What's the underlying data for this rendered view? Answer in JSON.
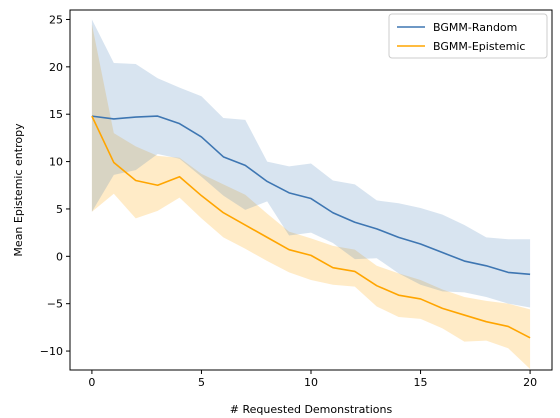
{
  "chart_data": {
    "type": "line",
    "xlabel": "# Requested Demonstrations",
    "ylabel": "Mean Epistemic entropy",
    "xlim": [
      -1,
      21
    ],
    "ylim": [
      -12,
      26
    ],
    "xticks": [
      0,
      5,
      10,
      15,
      20
    ],
    "yticks": [
      -10,
      -5,
      0,
      5,
      10,
      15,
      20,
      25
    ],
    "ytick_labels": [
      "−10",
      "−5",
      "0",
      "5",
      "10",
      "15",
      "20",
      "25"
    ],
    "grid": false,
    "legend": "top-right",
    "x": [
      0,
      1,
      2,
      3,
      4,
      5,
      6,
      7,
      8,
      9,
      10,
      11,
      12,
      13,
      14,
      15,
      16,
      17,
      18,
      19,
      20
    ],
    "series": [
      {
        "name": "BGMM-Random",
        "color": "#3e76b2",
        "band_color": "#cfdcec",
        "values": [
          14.8,
          14.5,
          14.7,
          14.8,
          14.0,
          12.6,
          10.5,
          9.6,
          7.9,
          6.7,
          6.1,
          4.6,
          3.6,
          2.9,
          2.0,
          1.3,
          0.4,
          -0.5,
          -1.0,
          -1.7,
          -1.9
        ],
        "upper": [
          25.0,
          20.4,
          20.3,
          18.8,
          17.8,
          16.9,
          14.6,
          14.4,
          10.0,
          9.5,
          9.8,
          8.0,
          7.6,
          5.9,
          5.6,
          5.1,
          4.4,
          3.3,
          2.0,
          1.8,
          1.8
        ],
        "lower": [
          4.7,
          8.6,
          9.1,
          10.8,
          10.3,
          8.4,
          6.4,
          4.9,
          5.8,
          2.2,
          2.5,
          1.4,
          -0.3,
          -0.2,
          -1.8,
          -3.0,
          -3.7,
          -3.8,
          -4.3,
          -5.0,
          -5.4
        ]
      },
      {
        "name": "BGMM-Epistemic",
        "color": "#ffa500",
        "band_color": "#fde6c0",
        "values": [
          14.8,
          9.9,
          8.0,
          7.5,
          8.4,
          6.4,
          4.6,
          3.3,
          2.0,
          0.7,
          0.1,
          -1.2,
          -1.6,
          -3.1,
          -4.1,
          -4.5,
          -5.5,
          -6.2,
          -6.9,
          -7.4,
          -8.6
        ],
        "upper": [
          24.5,
          13.0,
          11.6,
          10.6,
          10.4,
          8.7,
          7.6,
          6.5,
          4.5,
          2.6,
          1.9,
          1.1,
          0.7,
          -1.0,
          -1.8,
          -2.5,
          -3.5,
          -4.3,
          -4.7,
          -5.0,
          -5.6
        ],
        "lower": [
          4.7,
          6.6,
          4.0,
          4.8,
          6.2,
          4.0,
          2.0,
          0.8,
          -0.5,
          -1.7,
          -2.5,
          -3.0,
          -3.2,
          -5.3,
          -6.4,
          -6.6,
          -7.6,
          -9.0,
          -8.9,
          -9.7,
          -11.9
        ]
      }
    ]
  }
}
